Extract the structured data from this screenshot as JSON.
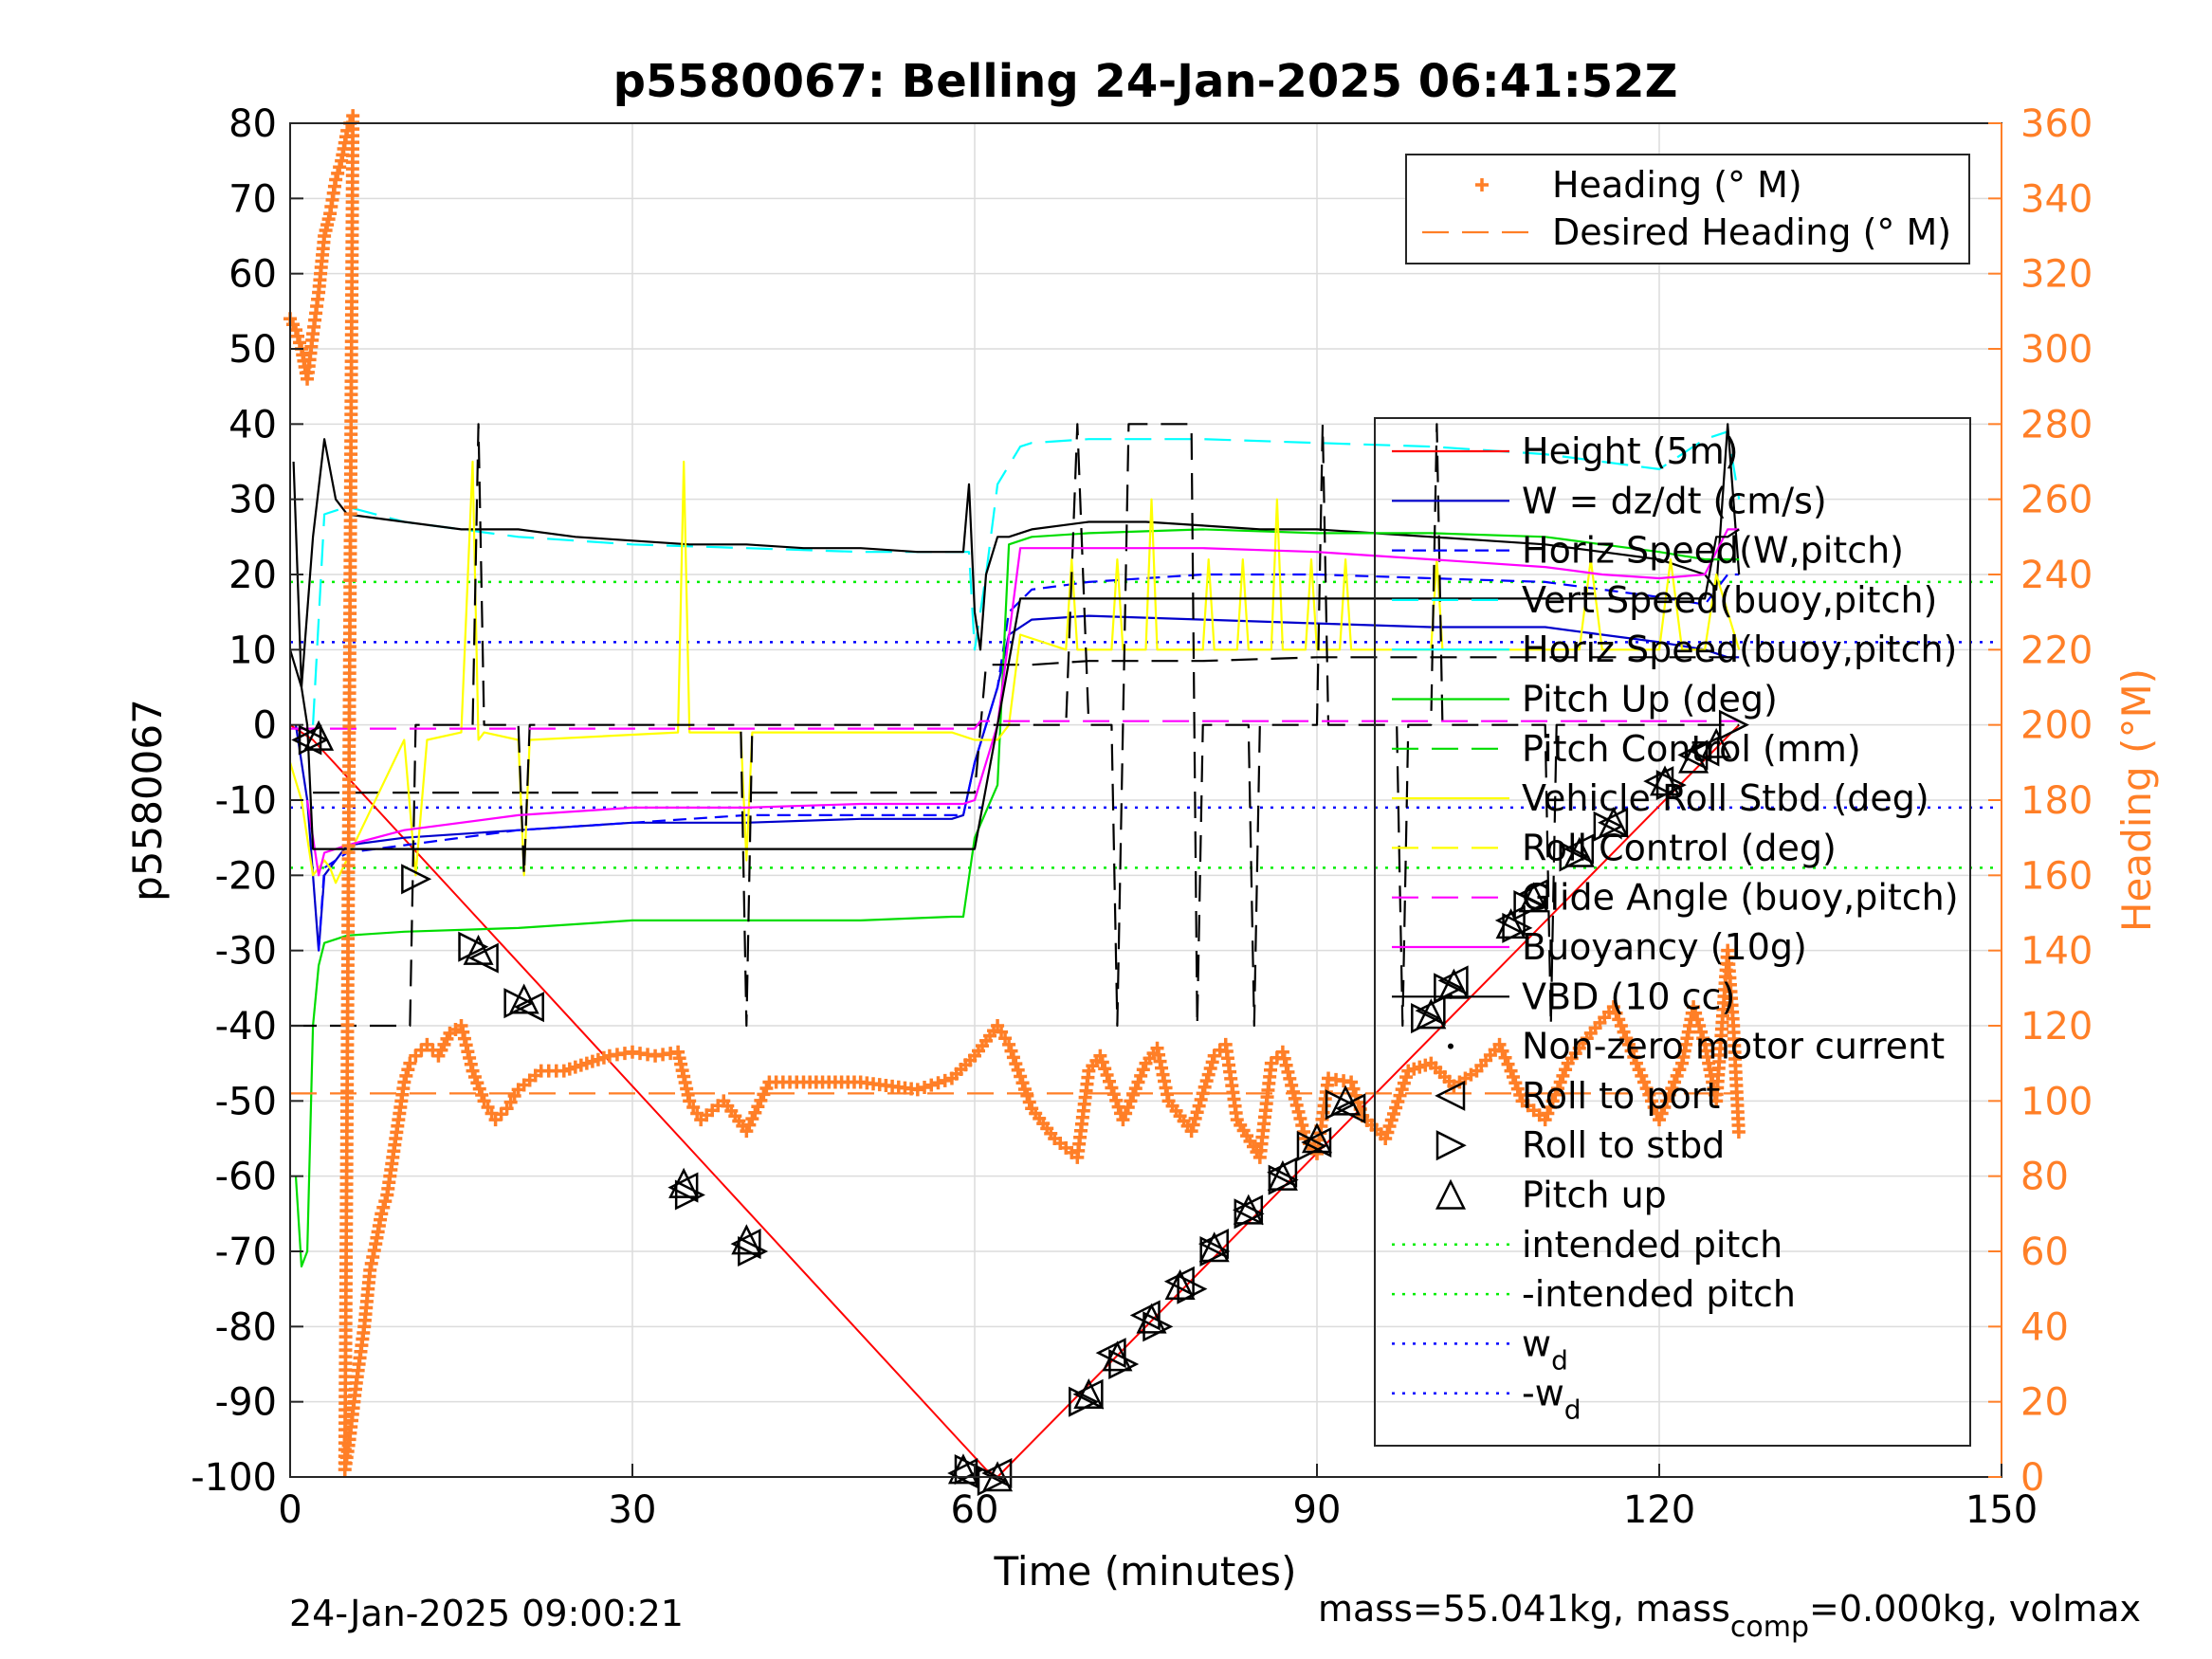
{
  "chart_data": {
    "type": "line",
    "title": "p5580067: Belling 24-Jan-2025 06:41:52Z",
    "xlabel": "Time (minutes)",
    "ylabel": "p5580067",
    "y2label": "Heading (°M)",
    "xlim": [
      0,
      150
    ],
    "ylim": [
      -100,
      80
    ],
    "y2lim": [
      0,
      360
    ],
    "xticks": [
      0,
      30,
      60,
      90,
      120,
      150
    ],
    "yticks": [
      -100,
      -90,
      -80,
      -70,
      -60,
      -50,
      -40,
      -30,
      -20,
      -10,
      0,
      10,
      20,
      30,
      40,
      50,
      60,
      70,
      80
    ],
    "y2ticks": [
      0,
      20,
      40,
      60,
      80,
      100,
      120,
      140,
      160,
      180,
      200,
      220,
      240,
      260,
      280,
      300,
      320,
      340,
      360
    ],
    "grid": true,
    "colors": {
      "height": "#ff0000",
      "w": "#0000cc",
      "horiz_w": "#0000ff",
      "vert_buoy": "#00ffff",
      "pitch": "#00dd00",
      "roll": "#ffff00",
      "glide": "#ff00ff",
      "buoy": "#ff00ff",
      "vbd": "#000000",
      "heading": "#ff7f27",
      "markers": "#000000"
    },
    "legend_top": {
      "placement": "top-right",
      "entries": [
        "Heading (° M)",
        "Desired Heading (° M)"
      ]
    },
    "legend_main": {
      "placement": "right",
      "entries": [
        "Height (5m)",
        "W = dz/dt (cm/s)",
        "Horiz Speed(W,pitch)",
        "Vert Speed(buoy,pitch)",
        "Horiz Speed(buoy,pitch)",
        "Pitch Up (deg)",
        "Pitch Control (mm)",
        "Vehicle Roll Stbd (deg)",
        "Roll Control (deg)",
        "Glide Angle (buoy,pitch)",
        "Buoyancy (10g)",
        "VBD (10 cc)",
        "Non-zero motor current",
        "Roll to port",
        "Roll to stbd",
        "Pitch up",
        "intended pitch",
        "-intended pitch",
        "w",
        "-w"
      ],
      "subscript": "d"
    },
    "footer_left": "24-Jan-2025 09:00:21",
    "footer_right_a": "mass=55.041kg, mass",
    "footer_right_sub": "comp",
    "footer_right_b": "=0.000kg, volmax",
    "series": [
      {
        "key": "height",
        "name": "Height (5m)",
        "axis": "left",
        "x": [
          0,
          1,
          2,
          61,
          62,
          127
        ],
        "y": [
          0,
          -1,
          -2,
          -99,
          -100,
          0
        ]
      },
      {
        "key": "w",
        "name": "W = dz/dt (cm/s)",
        "axis": "left",
        "x": [
          0.5,
          1.5,
          2.5,
          3,
          5,
          10,
          20,
          30,
          40,
          50,
          58,
          59,
          60,
          62,
          63,
          65,
          70,
          80,
          90,
          100,
          110,
          115,
          120,
          124,
          126,
          127
        ],
        "y": [
          0,
          -10,
          -30,
          -20,
          -16,
          -15,
          -14,
          -13,
          -13,
          -12.5,
          -12.5,
          -12,
          -5,
          5,
          12,
          14,
          14.5,
          14,
          13.5,
          13,
          13,
          12,
          11,
          10,
          9,
          9
        ]
      },
      {
        "key": "horiz_w",
        "name": "Horiz Speed(W,pitch)",
        "axis": "left",
        "dash": "14 8",
        "x": [
          2.5,
          3,
          5,
          10,
          20,
          30,
          40,
          50,
          58,
          59,
          60,
          62,
          63,
          65,
          70,
          80,
          90,
          100,
          110,
          115,
          120,
          124,
          126,
          127
        ],
        "y": [
          -30,
          -19,
          -17,
          -16,
          -14,
          -13,
          -12,
          -12,
          -12,
          -12,
          -5,
          5,
          15,
          18,
          19,
          20,
          20,
          19.5,
          19,
          18,
          17,
          16,
          20,
          20
        ]
      },
      {
        "key": "vert_buoy",
        "name": "Vert Speed(buoy,pitch)",
        "axis": "left",
        "dash": "28 14",
        "x": [
          2,
          3,
          5,
          10,
          20,
          30,
          40,
          50,
          58,
          59.5,
          60,
          61,
          62,
          64,
          65,
          70,
          80,
          90,
          100,
          110,
          115,
          120,
          124,
          126,
          127
        ],
        "y": [
          0,
          28,
          29,
          27,
          25,
          24,
          23.5,
          23,
          23,
          23,
          10,
          20,
          32,
          37,
          37.5,
          38,
          38,
          37.5,
          37,
          36,
          35,
          34,
          38,
          39,
          30
        ]
      },
      {
        "key": "horiz_buoy",
        "name": "Horiz Speed(buoy,pitch)",
        "axis": "left",
        "x": [
          0,
          1,
          2,
          3,
          4,
          5,
          10,
          15,
          20,
          25,
          30,
          35,
          40,
          45,
          50,
          55,
          58,
          59,
          59.5,
          60,
          60.5,
          61,
          62,
          63,
          65,
          70,
          75,
          80,
          85,
          90,
          95,
          100,
          105,
          110,
          115,
          120,
          124,
          125,
          126,
          127
        ],
        "y": [
          10,
          5,
          25,
          38,
          30,
          28,
          27,
          26,
          26,
          25,
          24.5,
          24,
          24,
          23.5,
          23.5,
          23,
          23,
          23,
          32,
          15,
          10,
          20,
          25,
          25,
          26,
          27,
          27,
          26.5,
          26,
          26,
          25.5,
          25,
          24.5,
          24,
          23,
          22,
          20,
          18,
          40,
          20
        ]
      },
      {
        "key": "pitch",
        "name": "Pitch Up (deg)",
        "axis": "left",
        "x": [
          0.5,
          1,
          1.5,
          2,
          2.5,
          3,
          5,
          10,
          20,
          30,
          40,
          50,
          58,
          59,
          60,
          62,
          63,
          65,
          70,
          80,
          90,
          100,
          110,
          115,
          120,
          124,
          126,
          127
        ],
        "y": [
          -60,
          -72,
          -70,
          -40,
          -32,
          -29,
          -28,
          -27.5,
          -27,
          -26,
          -26,
          -26,
          -25.5,
          -25.5,
          -15,
          -8,
          24,
          25,
          25.5,
          26,
          25.5,
          25.5,
          25,
          24,
          23,
          22,
          22,
          22
        ]
      },
      {
        "key": "pitch_ctl",
        "name": "Pitch Control (mm)",
        "axis": "left",
        "dash": "28 14",
        "x": [
          2,
          5,
          10,
          20,
          30,
          40,
          50,
          59,
          60,
          61,
          62,
          65,
          70,
          80,
          90,
          100,
          110,
          120,
          124,
          127
        ],
        "y": [
          -9,
          -9,
          -9,
          -9,
          -9,
          -9,
          -9,
          -9,
          -9,
          8,
          8,
          8,
          8.5,
          8.5,
          9,
          9,
          9,
          9,
          9,
          9
        ]
      },
      {
        "key": "roll",
        "name": "Vehicle Roll Stbd (deg)",
        "axis": "left",
        "x": [
          0,
          1,
          2,
          3,
          3.5,
          4,
          10,
          11,
          12,
          15,
          16,
          16.5,
          17,
          20,
          20.5,
          21,
          34,
          34.5,
          35,
          39.5,
          40,
          40.5,
          58,
          60,
          62,
          63,
          64,
          68,
          68.5,
          69,
          72,
          72.5,
          73,
          75,
          75.5,
          76,
          80,
          80.5,
          81,
          83,
          83.5,
          84,
          86,
          86.5,
          87,
          89,
          89.5,
          90,
          92,
          92.5,
          93,
          100,
          100.5,
          101,
          113,
          114,
          115,
          120,
          121,
          122,
          124,
          125,
          127
        ],
        "y": [
          -5,
          -10,
          -20,
          -18,
          -19,
          -21,
          -2,
          -20,
          -2,
          -1,
          35,
          -2,
          -1,
          -2,
          -20,
          -2,
          -1,
          35,
          -1,
          -1,
          -18,
          -1,
          -1,
          -2,
          -2,
          0,
          12,
          10,
          22,
          10,
          10,
          22,
          10,
          10,
          30,
          10,
          10,
          22,
          10,
          10,
          22,
          10,
          10,
          30,
          10,
          10,
          22,
          10,
          10,
          22,
          10,
          10,
          22,
          10,
          10,
          22,
          10,
          10,
          22,
          10,
          10,
          20,
          10
        ]
      },
      {
        "key": "roll_ctl",
        "name": "Roll Control (deg)",
        "axis": "left",
        "dash": "28 14",
        "x": [
          0,
          5,
          10.5,
          11,
          11.5,
          16,
          16.5,
          17,
          20,
          20.5,
          21,
          39.5,
          40,
          40.5,
          59,
          63,
          68,
          69,
          70,
          72,
          72.5,
          73,
          73.5,
          79,
          79.5,
          80,
          84,
          84.5,
          85,
          90,
          90.5,
          91,
          97,
          97.5,
          98,
          100,
          100.5,
          101,
          110,
          110.5,
          111,
          120,
          127
        ],
        "y": [
          -40,
          -40,
          -40,
          0,
          0,
          0,
          40,
          0,
          0,
          -20,
          0,
          0,
          -40,
          0,
          0,
          0,
          0,
          40,
          0,
          0,
          -40,
          0,
          40,
          40,
          -40,
          0,
          0,
          -40,
          0,
          0,
          40,
          0,
          0,
          -40,
          0,
          0,
          40,
          0,
          0,
          -40,
          0,
          0,
          0
        ]
      },
      {
        "key": "glide",
        "name": "Glide Angle (buoy,pitch)",
        "axis": "left",
        "dash": "28 14",
        "x": [
          0,
          60,
          60.5,
          127
        ],
        "y": [
          -0.5,
          -0.5,
          0.5,
          0.5
        ]
      },
      {
        "key": "buoy",
        "name": "Buoyancy (10g)",
        "axis": "left",
        "x": [
          1.5,
          2.5,
          3,
          5,
          10,
          20,
          30,
          40,
          50,
          59,
          60,
          62,
          64,
          70,
          80,
          90,
          100,
          110,
          115,
          120,
          124,
          126,
          127
        ],
        "y": [
          -10,
          -20,
          -17,
          -16,
          -14,
          -12,
          -11,
          -11,
          -10.5,
          -10.5,
          -10,
          0,
          23.5,
          23.5,
          23.5,
          23,
          22,
          21,
          20,
          19.5,
          20,
          26,
          26
        ]
      },
      {
        "key": "vbd",
        "name": "VBD (10 cc)",
        "axis": "left",
        "x": [
          0.3,
          1,
          1.5,
          2,
          59,
          59.5,
          60,
          62,
          64,
          124,
          125,
          126,
          127
        ],
        "y": [
          35,
          5,
          0,
          -16.5,
          -16.5,
          -16.5,
          -16.5,
          0,
          16.8,
          16.8,
          25,
          25,
          26
        ]
      },
      {
        "key": "heading",
        "name": "Heading (° M)",
        "axis": "right",
        "marker": "plus",
        "x": [
          0,
          0.5,
          1,
          1.5,
          2,
          2.5,
          3,
          3.5,
          4,
          4.5,
          5,
          5.5,
          4.8,
          5.2,
          5.8,
          6.5,
          7,
          7.5,
          8,
          8.5,
          9,
          9.5,
          10,
          10.5,
          11,
          12,
          13,
          14,
          15,
          16,
          17,
          18,
          19,
          20,
          22,
          24,
          26,
          28,
          30,
          32,
          34,
          35,
          36,
          38,
          40,
          42,
          45,
          50,
          55,
          58,
          60,
          62,
          63,
          65,
          67,
          69,
          70,
          71,
          73,
          75,
          76,
          77,
          79,
          81,
          82,
          83,
          85,
          86,
          87,
          89,
          90,
          91,
          93,
          94,
          96,
          98,
          100,
          102,
          104,
          106,
          107,
          108,
          110,
          112,
          114,
          116,
          118,
          120,
          122,
          123,
          124,
          125,
          126,
          126.5,
          127
        ],
        "y": [
          308,
          305,
          300,
          292,
          304,
          315,
          330,
          336,
          345,
          350,
          358,
          362,
          2,
          10,
          25,
          40,
          55,
          62,
          70,
          75,
          85,
          95,
          105,
          110,
          112,
          115,
          112,
          118,
          120,
          108,
          100,
          95,
          98,
          103,
          108,
          108,
          110,
          112,
          113,
          112,
          113,
          100,
          95,
          100,
          92,
          105,
          105,
          105,
          103,
          106,
          112,
          120,
          115,
          98,
          90,
          85,
          108,
          112,
          95,
          110,
          114,
          100,
          92,
          112,
          115,
          95,
          85,
          110,
          113,
          90,
          86,
          106,
          105,
          96,
          90,
          108,
          110,
          104,
          108,
          115,
          108,
          100,
          95,
          110,
          118,
          125,
          110,
          95,
          110,
          125,
          115,
          100,
          140,
          120,
          90
        ]
      },
      {
        "key": "desired_heading",
        "name": "Desired Heading (° M)",
        "axis": "right",
        "dash": "28 14",
        "x": [
          0,
          127
        ],
        "y": [
          102,
          102
        ]
      }
    ],
    "reference_lines": [
      {
        "name": "intended pitch",
        "y": 19,
        "color": "#00ee00"
      },
      {
        "name": "-intended pitch",
        "y": -19,
        "color": "#00ee00"
      },
      {
        "name": "w_d",
        "y": 11,
        "color": "#0000ff"
      },
      {
        "name": "-w_d",
        "y": -11,
        "color": "#0000ff"
      }
    ],
    "markers": {
      "roll_to_port": {
        "x": [
          1.5,
          17,
          21,
          34.5,
          40,
          59,
          62,
          70,
          72,
          75,
          78,
          81,
          84,
          87,
          90,
          93,
          100,
          102,
          107,
          109,
          113,
          116,
          120,
          123,
          124
        ],
        "y": [
          -2,
          -31,
          -37.5,
          -61.5,
          -69,
          -99.5,
          -99.5,
          -89,
          -83.5,
          -78.5,
          -74,
          -69,
          -64.5,
          -59.5,
          -55.5,
          -51,
          -38,
          -34,
          -26,
          -22.5,
          -16.5,
          -13,
          -7.5,
          -4,
          -3.5
        ]
      },
      "roll_to_stbd": {
        "x": [
          2,
          11,
          16,
          20,
          35,
          40.5,
          59.5,
          61.5,
          69.5,
          73,
          76,
          79,
          81,
          84,
          87,
          89.5,
          92,
          99.5,
          101.5,
          107.5,
          108.5,
          112.5,
          115.5,
          121,
          126.5
        ],
        "y": [
          -2,
          -20.5,
          -29.5,
          -37,
          -62.5,
          -70,
          -99,
          -100.5,
          -90,
          -85,
          -80,
          -75,
          -70,
          -65,
          -60.5,
          -56,
          -50.5,
          -39,
          -35,
          -27,
          -24,
          -17.5,
          -13.5,
          -8,
          0
        ]
      },
      "pitch_up": {
        "x": [
          2.5,
          16.5,
          20.5,
          34.5,
          40,
          59,
          62,
          70,
          72.5,
          75.5,
          78,
          81,
          84,
          87,
          90,
          92.5,
          100,
          102,
          107,
          109,
          113,
          116,
          120.5,
          123,
          125
        ],
        "y": [
          -1.5,
          -30,
          -36.5,
          -61,
          -68.5,
          -99,
          -100,
          -89,
          -84,
          -79,
          -74.5,
          -69.5,
          -64.5,
          -60,
          -55,
          -50,
          -38.5,
          -34.5,
          -26.5,
          -23,
          -17,
          -13,
          -7.5,
          -4.5,
          -2.5
        ]
      }
    }
  }
}
